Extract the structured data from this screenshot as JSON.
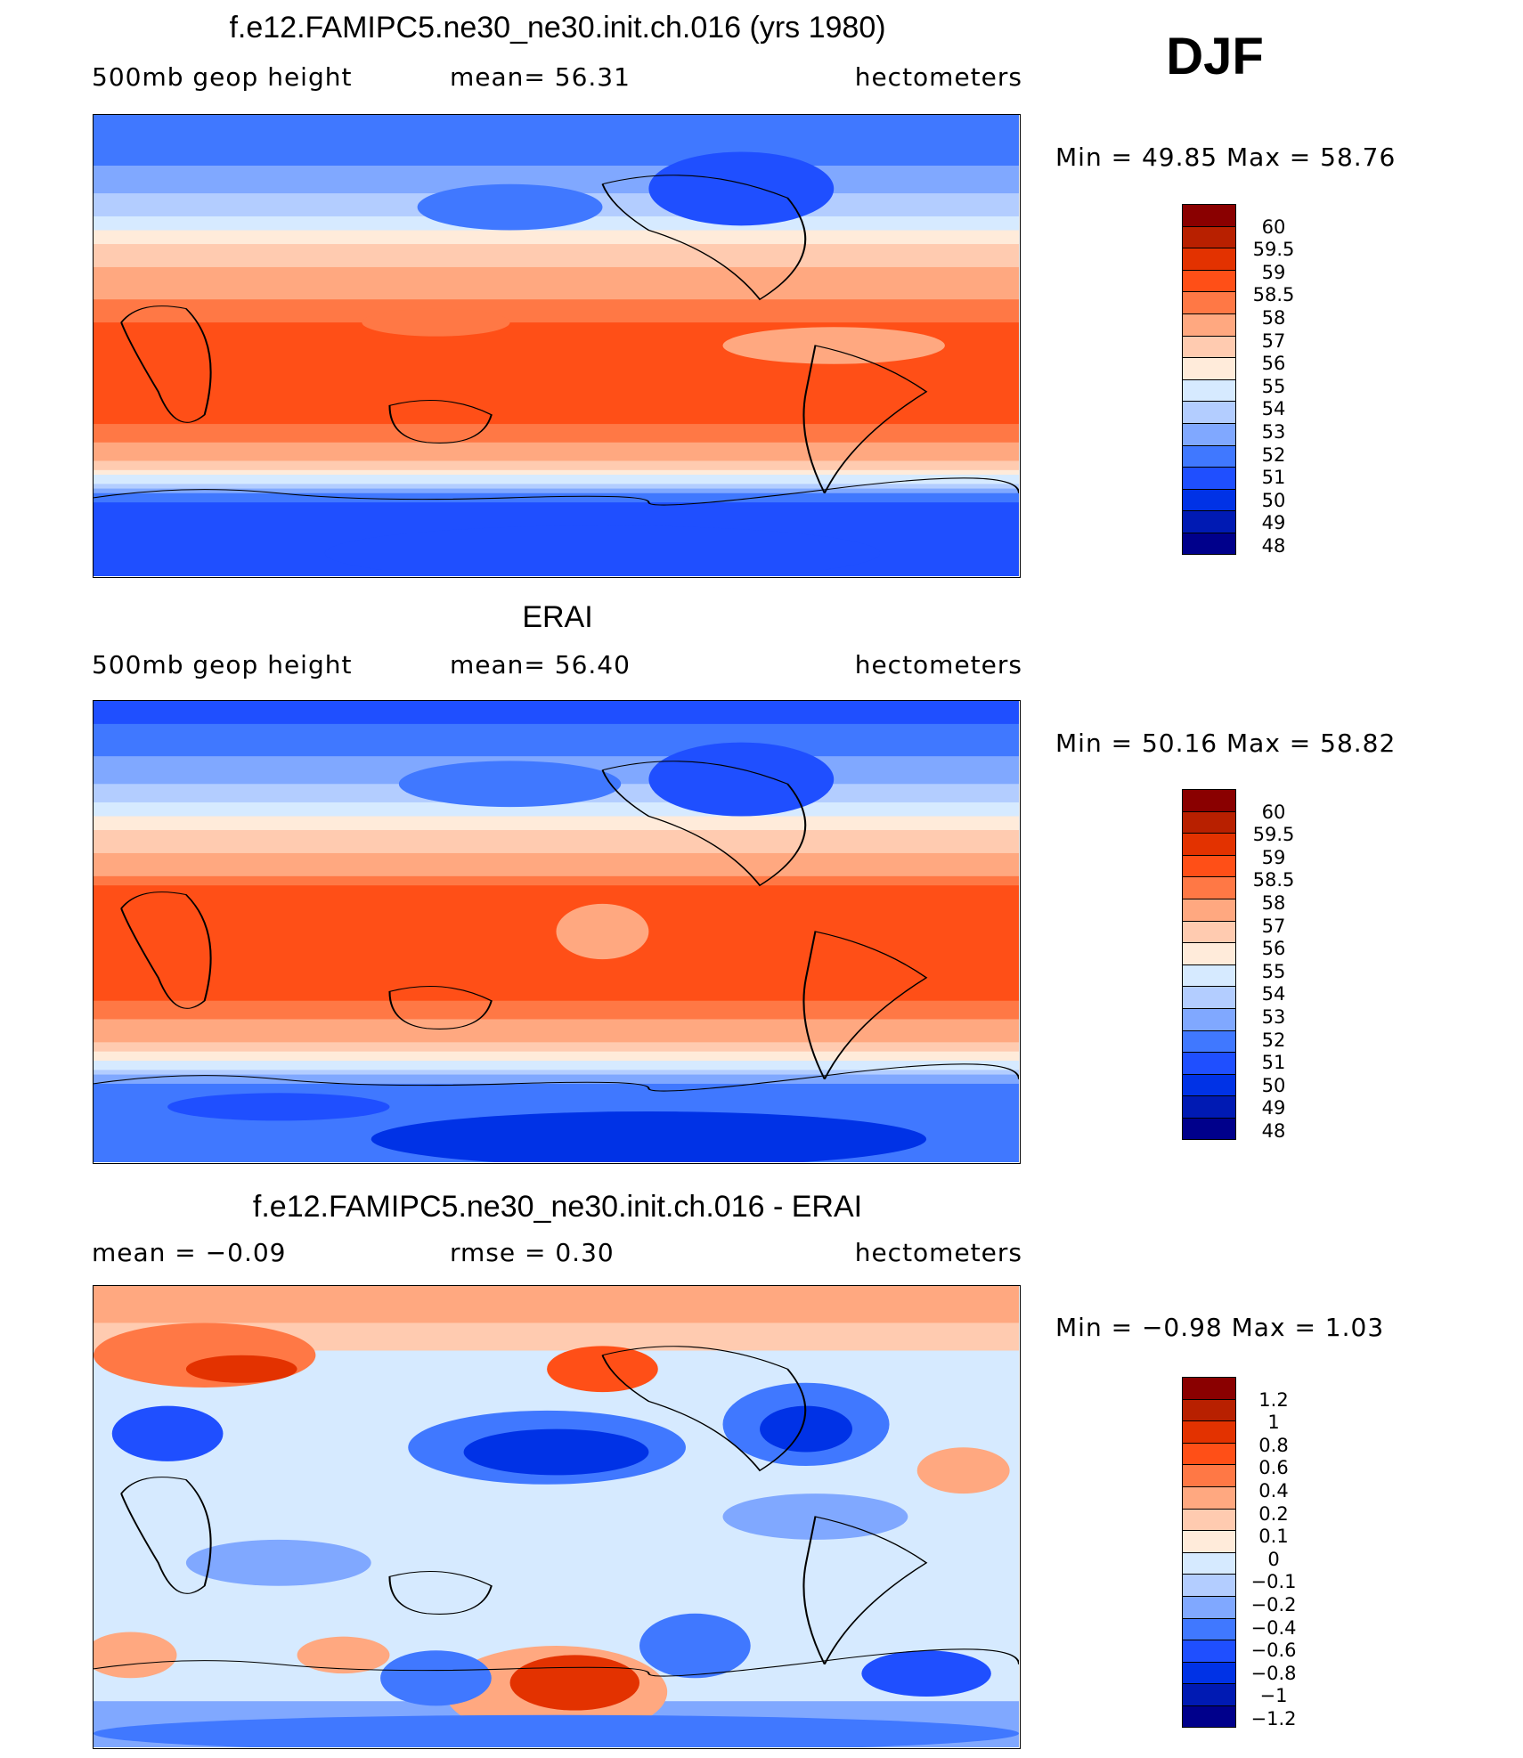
{
  "season": "DJF",
  "chart_data": [
    {
      "type": "heatmap",
      "title": "f.e12.FAMIPC5.ne30_ne30.init.ch.016 (yrs 1980)",
      "left_label": "500mb geop height",
      "center_label": "mean=   56.31",
      "units": "hectometers",
      "min_max": "Min =   49.85  Max =   58.76",
      "min": 49.85,
      "max": 58.76,
      "mean": 56.31,
      "colorbar_levels": [
        "60",
        "59.5",
        "59",
        "58.5",
        "58",
        "57",
        "56",
        "55",
        "54",
        "53",
        "52",
        "51",
        "50",
        "49",
        "48"
      ]
    },
    {
      "type": "heatmap",
      "title": "ERAI",
      "left_label": "500mb geop height",
      "center_label": "mean=   56.40",
      "units": "hectometers",
      "min_max": "Min =   50.16  Max =   58.82",
      "min": 50.16,
      "max": 58.82,
      "mean": 56.4,
      "colorbar_levels": [
        "60",
        "59.5",
        "59",
        "58.5",
        "58",
        "57",
        "56",
        "55",
        "54",
        "53",
        "52",
        "51",
        "50",
        "49",
        "48"
      ]
    },
    {
      "type": "heatmap",
      "title": "f.e12.FAMIPC5.ne30_ne30.init.ch.016 - ERAI",
      "left_label": "mean =   −0.09",
      "center_label": "rmse =    0.30",
      "units": "hectometers",
      "min_max": "Min =   −0.98  Max =    1.03",
      "min": -0.98,
      "max": 1.03,
      "mean": -0.09,
      "rmse": 0.3,
      "colorbar_levels": [
        "1.2",
        "1",
        "0.8",
        "0.6",
        "0.4",
        "0.2",
        "0.1",
        "0",
        "−0.1",
        "−0.2",
        "−0.4",
        "−0.6",
        "−0.8",
        "−1",
        "−1.2"
      ]
    }
  ],
  "palette": [
    "#8a0000",
    "#b82000",
    "#e33200",
    "#ff4f17",
    "#ff7845",
    "#ffa880",
    "#ffcbb0",
    "#ffebda",
    "#d6eaff",
    "#b3cdff",
    "#80a8ff",
    "#4078ff",
    "#1f4fff",
    "#0032e6",
    "#001ab3",
    "#00008b"
  ]
}
